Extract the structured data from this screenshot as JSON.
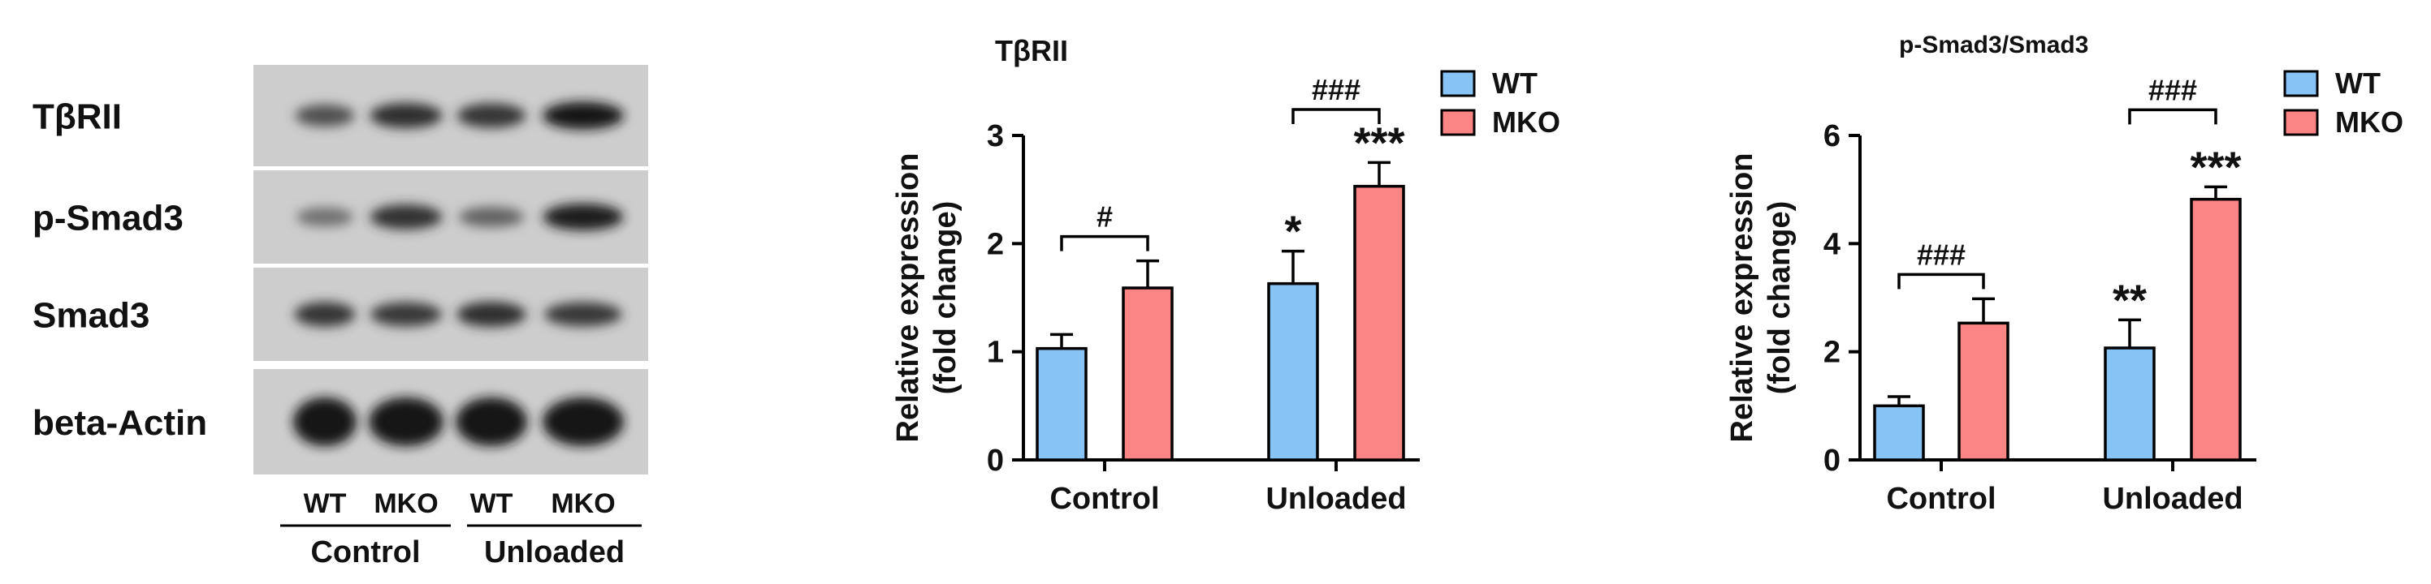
{
  "colors": {
    "wt": "#87c4f5",
    "mko": "#fb8585",
    "axis": "#000000"
  },
  "blot": {
    "proteins": [
      "TβRII",
      "p-Smad3",
      "Smad3",
      "beta-Actin"
    ],
    "lanes": [
      "WT",
      "MKO",
      "WT",
      "MKO"
    ],
    "groups": [
      "Control",
      "Unloaded"
    ],
    "band_intensity": [
      [
        0.55,
        0.8,
        0.75,
        1.0
      ],
      [
        0.3,
        0.78,
        0.4,
        0.92
      ],
      [
        0.75,
        0.72,
        0.8,
        0.72
      ],
      [
        1.0,
        1.0,
        1.0,
        1.0
      ]
    ]
  },
  "chart_data": [
    {
      "type": "bar",
      "title": "TβRII",
      "ylabel": "Relative expression (fold change)",
      "ylim": [
        0,
        3
      ],
      "yticks": [
        "0",
        "1",
        "2",
        "3"
      ],
      "categories": [
        "Control",
        "Unloaded"
      ],
      "legend": {
        "position": "top-right",
        "entries": [
          "WT",
          "MKO"
        ]
      },
      "series": [
        {
          "name": "WT",
          "values": [
            1.03,
            1.63
          ],
          "errors": [
            0.13,
            0.3
          ],
          "labels": [
            "",
            "*"
          ]
        },
        {
          "name": "MKO",
          "values": [
            1.59,
            2.53
          ],
          "errors": [
            0.25,
            0.22
          ],
          "labels": [
            "",
            "***"
          ]
        }
      ],
      "brackets": [
        "#",
        "###"
      ]
    },
    {
      "type": "bar",
      "title": "p-Smad3/Smad3",
      "ylabel": "Relative expression (fold change)",
      "ylim": [
        0,
        6
      ],
      "yticks": [
        "0",
        "2",
        "4",
        "6"
      ],
      "categories": [
        "Control",
        "Unloaded"
      ],
      "legend": {
        "position": "top-right",
        "entries": [
          "WT",
          "MKO"
        ]
      },
      "series": [
        {
          "name": "WT",
          "values": [
            1.0,
            2.07
          ],
          "errors": [
            0.17,
            0.52
          ],
          "labels": [
            "",
            "**"
          ]
        },
        {
          "name": "MKO",
          "values": [
            2.53,
            4.82
          ],
          "errors": [
            0.45,
            0.23
          ],
          "labels": [
            "",
            "***"
          ]
        }
      ],
      "brackets": [
        "###",
        "###"
      ]
    }
  ]
}
